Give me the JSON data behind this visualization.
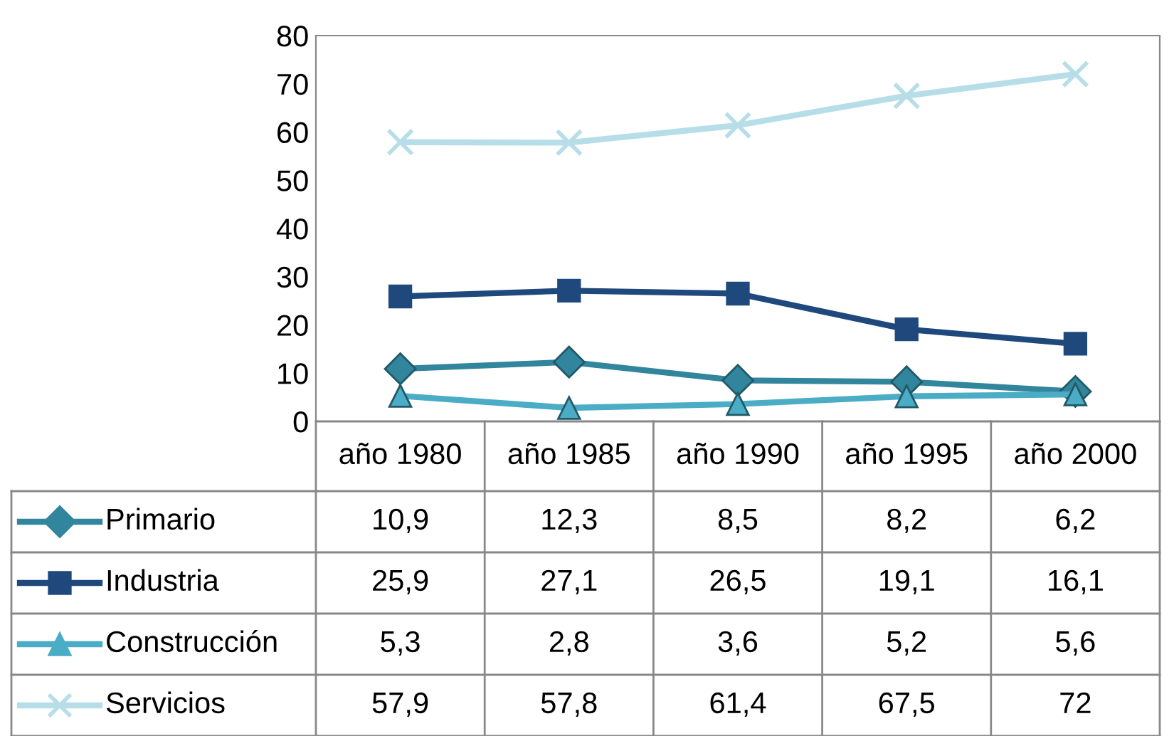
{
  "chart_data": {
    "type": "line",
    "categories": [
      "año 1980",
      "año 1985",
      "año 1990",
      "año 1995",
      "año 2000"
    ],
    "series": [
      {
        "name": "Primario",
        "color": "#31859c",
        "marker": "diamond",
        "values": [
          10.9,
          12.3,
          8.5,
          8.2,
          6.2
        ],
        "value_labels": [
          "10,9",
          "12,3",
          "8,5",
          "8,2",
          "6,2"
        ]
      },
      {
        "name": "Industria",
        "color": "#1f497d",
        "marker": "square",
        "values": [
          25.9,
          27.1,
          26.5,
          19.1,
          16.1
        ],
        "value_labels": [
          "25,9",
          "27,1",
          "26,5",
          "19,1",
          "16,1"
        ]
      },
      {
        "name": "Construcción",
        "color": "#4bacc6",
        "marker": "triangle",
        "values": [
          5.3,
          2.8,
          3.6,
          5.2,
          5.6
        ],
        "value_labels": [
          "5,3",
          "2,8",
          "3,6",
          "5,2",
          "5,6"
        ]
      },
      {
        "name": "Servicios",
        "color": "#b7dee8",
        "marker": "cross",
        "values": [
          57.9,
          57.8,
          61.4,
          67.5,
          72
        ],
        "value_labels": [
          "57,9",
          "57,8",
          "61,4",
          "67,5",
          "72"
        ]
      }
    ],
    "ylim": [
      0,
      80
    ],
    "yticks": [
      0,
      10,
      20,
      30,
      40,
      50,
      60,
      70,
      80
    ],
    "grid": false,
    "legend": "bottom",
    "line_style": "solid"
  }
}
